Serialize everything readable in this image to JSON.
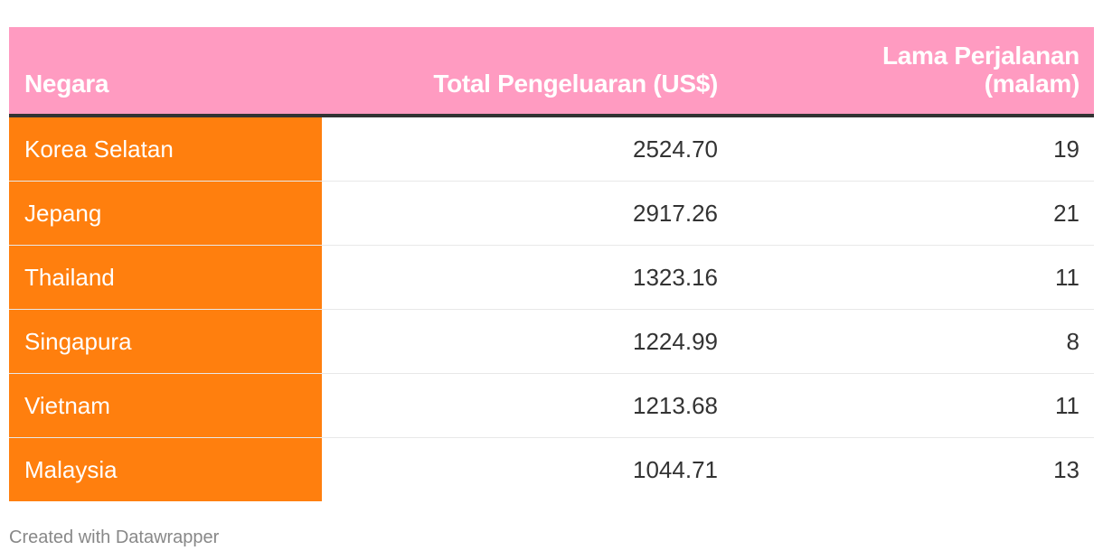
{
  "chart_data": {
    "type": "table",
    "columns": [
      "Negara",
      "Total Pengeluaran (US$)",
      "Lama Perjalanan (malam)"
    ],
    "header_lines": {
      "nights": [
        "Lama Perjalanan",
        "(malam)"
      ]
    },
    "rows": [
      {
        "country": "Korea Selatan",
        "spend": "2524.70",
        "nights": "19"
      },
      {
        "country": "Jepang",
        "spend": "2917.26",
        "nights": "21"
      },
      {
        "country": "Thailand",
        "spend": "1323.16",
        "nights": "11"
      },
      {
        "country": "Singapura",
        "spend": "1224.99",
        "nights": "8"
      },
      {
        "country": "Vietnam",
        "spend": "1213.68",
        "nights": "11"
      },
      {
        "country": "Malaysia",
        "spend": "1044.71",
        "nights": "13"
      }
    ],
    "colors": {
      "header_background": "#ff9bc1",
      "country_column_background": "#ff7f0e",
      "header_rule": "#333333"
    }
  },
  "footer": "Created with Datawrapper"
}
